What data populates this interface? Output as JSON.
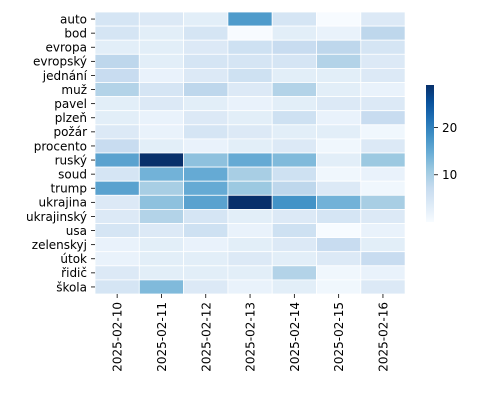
{
  "chart_data": {
    "type": "heatmap",
    "title": "",
    "xlabel": "",
    "ylabel": "",
    "x": [
      "2025-02-10",
      "2025-02-11",
      "2025-02-12",
      "2025-02-13",
      "2025-02-14",
      "2025-02-15",
      "2025-02-16"
    ],
    "y": [
      "auto",
      "bod",
      "evropa",
      "evropský",
      "jednání",
      "muž",
      "pavel",
      "plzeň",
      "požár",
      "procento",
      "ruský",
      "soud",
      "trump",
      "ukrajina",
      "ukrajinský",
      "usa",
      "zelenskyj",
      "útok",
      "řidič",
      "škola"
    ],
    "values": [
      [
        5,
        4,
        3,
        17,
        5,
        0,
        4
      ],
      [
        5,
        3,
        5,
        0,
        3,
        2,
        8
      ],
      [
        3,
        3,
        4,
        6,
        7,
        8,
        5
      ],
      [
        8,
        3,
        5,
        5,
        5,
        9,
        4
      ],
      [
        7,
        2,
        4,
        6,
        3,
        3,
        4
      ],
      [
        9,
        5,
        8,
        4,
        9,
        3,
        2
      ],
      [
        3,
        4,
        3,
        2,
        3,
        4,
        4
      ],
      [
        3,
        2,
        4,
        3,
        6,
        2,
        7
      ],
      [
        4,
        2,
        5,
        4,
        3,
        3,
        1
      ],
      [
        7,
        3,
        2,
        3,
        4,
        1,
        4
      ],
      [
        16,
        29,
        12,
        15,
        13,
        3,
        11
      ],
      [
        5,
        14,
        15,
        10,
        6,
        1,
        2
      ],
      [
        16,
        10,
        15,
        11,
        8,
        4,
        1
      ],
      [
        4,
        12,
        16,
        29,
        18,
        14,
        10
      ],
      [
        4,
        9,
        5,
        3,
        4,
        5,
        4
      ],
      [
        5,
        4,
        6,
        2,
        6,
        0,
        2
      ],
      [
        2,
        3,
        2,
        3,
        4,
        7,
        3
      ],
      [
        2,
        3,
        3,
        4,
        3,
        4,
        7
      ],
      [
        4,
        3,
        3,
        3,
        9,
        1,
        2
      ],
      [
        5,
        13,
        4,
        2,
        3,
        1,
        4
      ]
    ],
    "colorbar": {
      "min": 0,
      "max": 29,
      "ticks": [
        10,
        20
      ],
      "colors": [
        "#f7fbff",
        "#deebf7",
        "#c6dbef",
        "#9ecae1",
        "#6baed6",
        "#4292c6",
        "#2171b5",
        "#08519c",
        "#08306b"
      ]
    },
    "grid": false,
    "legend": "colorbar-right"
  }
}
